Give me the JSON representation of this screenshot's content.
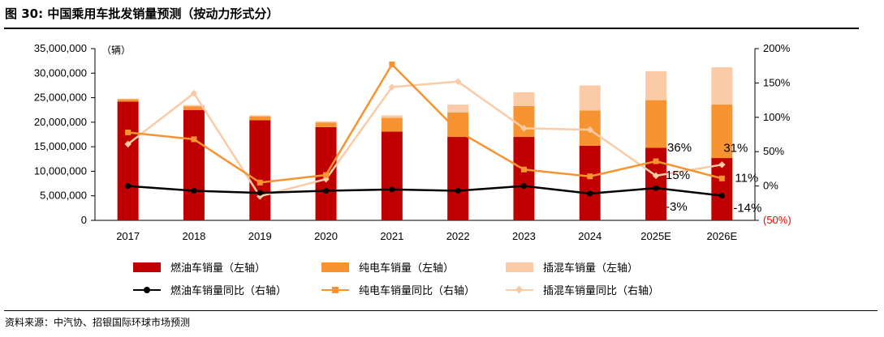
{
  "header": {
    "title": "图 30: 中国乘用车批发销量预测（按动力形式分）"
  },
  "footer": {
    "source": "资料来源：中汽协、招银国际环球市场预测"
  },
  "colors": {
    "fuel": "#C00000",
    "ev": "#F79431",
    "phev": "#FBCBA8",
    "fuel_line": "#000000",
    "ev_line": "#F79431",
    "phev_line": "#FBCBA8",
    "negative_label": "#FF0000"
  },
  "chart_data": {
    "type": "bar",
    "stacked": true,
    "unit_label": "（辆）",
    "categories": [
      "2017",
      "2018",
      "2019",
      "2020",
      "2021",
      "2022",
      "2023",
      "2024",
      "2025E",
      "2026E"
    ],
    "left_axis": {
      "min": 0,
      "max": 35000000,
      "ticks": [
        "0",
        "5,000,000",
        "10,000,000",
        "15,000,000",
        "20,000,000",
        "25,000,000",
        "30,000,000",
        "35,000,000"
      ]
    },
    "right_axis": {
      "min": -50,
      "max": 200,
      "ticks": [
        "(50%)",
        "0%",
        "50%",
        "100%",
        "150%",
        "200%"
      ]
    },
    "series": [
      {
        "name": "燃油车销量（左轴）",
        "kind": "bar",
        "axis": "left",
        "values": [
          24200000,
          22500000,
          20400000,
          19000000,
          18100000,
          17000000,
          17000000,
          15200000,
          14800000,
          12700000
        ]
      },
      {
        "name": "纯电车销量（左轴）",
        "kind": "bar",
        "axis": "left",
        "values": [
          500000,
          750000,
          800000,
          950000,
          2800000,
          5000000,
          6300000,
          7200000,
          9700000,
          10900000
        ]
      },
      {
        "name": "插混车销量（左轴）",
        "kind": "bar",
        "axis": "left",
        "values": [
          100000,
          250000,
          200000,
          250000,
          500000,
          1600000,
          2800000,
          5100000,
          5900000,
          7600000
        ]
      },
      {
        "name": "燃油车销量同比（右轴）",
        "kind": "line",
        "axis": "right",
        "values": [
          0,
          -7,
          -10,
          -7,
          -5,
          -7,
          0,
          -11,
          -3,
          -14
        ]
      },
      {
        "name": "纯电车销量同比（右轴）",
        "kind": "line",
        "axis": "right",
        "values": [
          78,
          68,
          5,
          16,
          177,
          80,
          24,
          14,
          36,
          11
        ]
      },
      {
        "name": "插混车销量同比（右轴）",
        "kind": "line",
        "axis": "right",
        "values": [
          61,
          135,
          -15,
          10,
          144,
          152,
          84,
          82,
          15,
          31
        ]
      }
    ],
    "annotations": [
      "36%",
      "15%",
      "-3%",
      "31%",
      "11%",
      "-14%"
    ]
  }
}
